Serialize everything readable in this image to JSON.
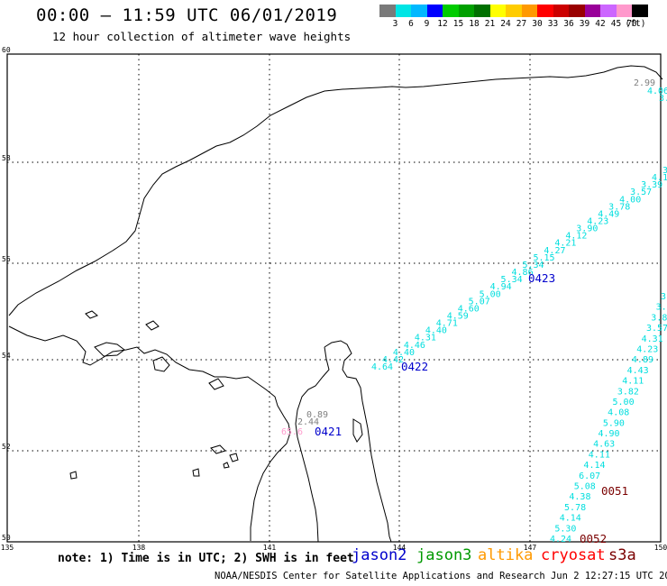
{
  "title": "00:00 — 11:59 UTC 06/01/2019",
  "subtitle": "12 hour collection of altimeter wave heights",
  "legend": {
    "colors": [
      "#7a7a7a",
      "#00e5e5",
      "#00b8ff",
      "#0000ff",
      "#00cc00",
      "#00a000",
      "#007000",
      "#ffff00",
      "#ffcc00",
      "#ff9900",
      "#ff0000",
      "#cc0000",
      "#990000",
      "#990099",
      "#cc66ff",
      "#ff99cc",
      "#000000"
    ],
    "labels": [
      "3",
      "6",
      "9",
      "12",
      "15",
      "18",
      "21",
      "24",
      "27",
      "30",
      "33",
      "36",
      "39",
      "42",
      "45",
      "70",
      "(ft)"
    ]
  },
  "axes": {
    "lat_ticks": [
      "60",
      "58",
      "56",
      "54",
      "52",
      "50"
    ],
    "lon_ticks": [
      "135",
      "138",
      "141",
      "144",
      "147",
      "150"
    ]
  },
  "colors": {
    "swh_cyan": "#00dede",
    "swh_gray": "#808080",
    "swh_pink": "#ff99cc",
    "jason2": "#0000cc",
    "jason3": "#009900",
    "altika": "#ff9900",
    "cryosat": "#ff0000",
    "s3a": "#7a0000"
  },
  "passes": [
    {
      "label": "0422",
      "color": "#0000cc"
    },
    {
      "label": "0423",
      "color": "#0000cc"
    },
    {
      "label": "0421",
      "color": "#0000cc"
    },
    {
      "label": "0051",
      "color": "#7a0000"
    },
    {
      "label": "0052",
      "color": "#7a0000"
    }
  ],
  "swh_track_ne": [
    "4.64",
    "4.42",
    "4.40",
    "4.46",
    "4.31",
    "4.40",
    "4.71",
    "4.59",
    "4.60",
    "5.07",
    "5.00",
    "4.94",
    "5.34",
    "4.86",
    "5.34",
    "5.15",
    "4.27",
    "4.21",
    "4.12",
    "3.90",
    "4.23",
    "4.49",
    "3.78",
    "4.00",
    "3.57",
    "3.39",
    "4.12",
    "3.1"
  ],
  "swh_track_se": [
    "4.24",
    "5.30",
    "4.14",
    "5.78",
    "4.38",
    "5.08",
    "6.07",
    "4.14",
    "4.11",
    "4.63",
    "4.90",
    "5.90",
    "4.08",
    "5.00",
    "3.82",
    "4.11",
    "4.43",
    "4.89",
    "4.23",
    "4.31",
    "3.57",
    "3.86",
    "3.6",
    "3."
  ],
  "swh_top": [
    "2.99",
    "4.06",
    "3."
  ],
  "swh_sakhalin": [
    "0.89",
    "2.44",
    "65.6"
  ],
  "note": "note: 1) Time is in UTC; 2) SWH is in feet",
  "satellites": [
    "jason2",
    "jason3",
    "altika",
    "cryosat",
    "s3a"
  ],
  "footer": "NOAA/NESDIS Center for Satellite Applications and Research   Jun  2 12:27:15 UTC 2019"
}
